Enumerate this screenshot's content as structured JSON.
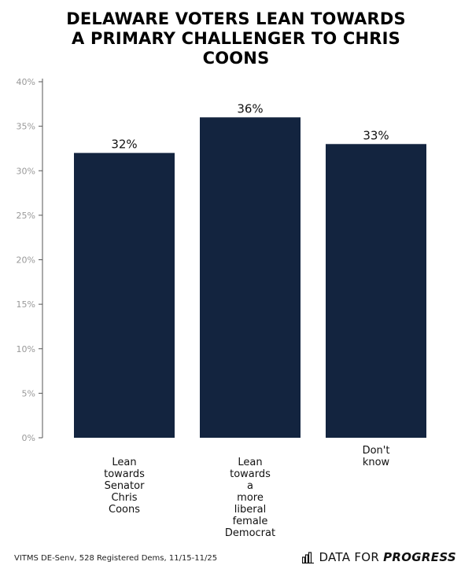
{
  "chart_data": {
    "type": "bar",
    "title": [
      "DELAWARE VOTERS LEAN TOWARDS",
      "A PRIMARY CHALLENGER TO CHRIS",
      "COONS"
    ],
    "categories": [
      [
        "Lean",
        "towards",
        "Senator",
        "Chris",
        "Coons"
      ],
      [
        "Lean",
        "towards",
        "a",
        "more",
        "liberal",
        "female",
        "Democrat"
      ],
      [
        "Don't",
        "know"
      ]
    ],
    "values": [
      32,
      36,
      33
    ],
    "data_labels": [
      "32%",
      "36%",
      "33%"
    ],
    "ylim": [
      0,
      40
    ],
    "yticks": [
      0,
      5,
      10,
      15,
      20,
      25,
      30,
      35,
      40
    ],
    "ytick_labels": [
      "0%",
      "5%",
      "10%",
      "15%",
      "20%",
      "25%",
      "30%",
      "35%",
      "40%"
    ],
    "xlabel": "",
    "ylabel": "",
    "bar_color": "#13243f",
    "grid": false
  },
  "footer": {
    "source": "VITMS DE-Senv, 528 Registered Dems, 11/15-11/25",
    "brand_part1": "DATA FOR",
    "brand_part2": "PROGRESS"
  }
}
